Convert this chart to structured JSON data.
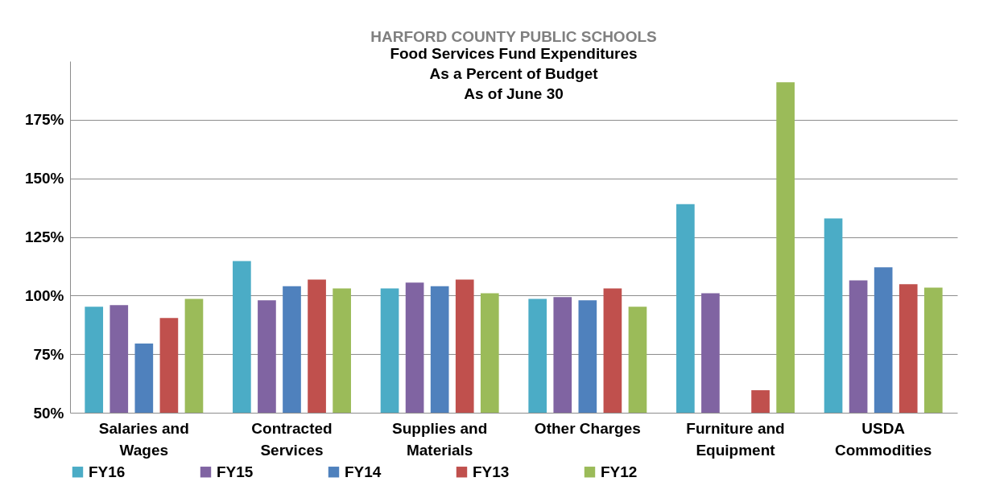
{
  "chart_data": {
    "type": "bar",
    "title": "HARFORD COUNTY PUBLIC SCHOOLS",
    "subtitle": "Food Services Fund Expenditures\nAs a Percent of Budget\nAs of June 30",
    "categories": [
      "Salaries and Wages",
      "Contracted Services",
      "Supplies and Materials",
      "Other Charges",
      "Furniture and Equipment",
      "USDA Commodities"
    ],
    "series": [
      {
        "name": "FY16",
        "color": "#4bacc6",
        "values": [
          95.2,
          114.7,
          103,
          98.6,
          139,
          132.9
        ]
      },
      {
        "name": "FY15",
        "color": "#8064a2",
        "values": [
          95.9,
          98,
          105.5,
          99.3,
          101,
          106.5
        ]
      },
      {
        "name": "FY14",
        "color": "#4f81bd",
        "values": [
          79.5,
          104,
          104,
          98,
          null,
          112
        ]
      },
      {
        "name": "FY13",
        "color": "#c0504d",
        "values": [
          90.4,
          106.8,
          106.8,
          103,
          59.6,
          104.8
        ]
      },
      {
        "name": "FY12",
        "color": "#9bbb59",
        "values": [
          98.6,
          103,
          101,
          95.2,
          191,
          103.4
        ]
      }
    ],
    "ylim": [
      50,
      200
    ],
    "yticks": [
      {
        "value": 50,
        "label": "50%"
      },
      {
        "value": 75,
        "label": "75%"
      },
      {
        "value": 100,
        "label": "100%"
      },
      {
        "value": 125,
        "label": "125%"
      },
      {
        "value": 150,
        "label": "150%"
      },
      {
        "value": 175,
        "label": "175%"
      }
    ],
    "grid": "y",
    "legend": "bottom"
  }
}
